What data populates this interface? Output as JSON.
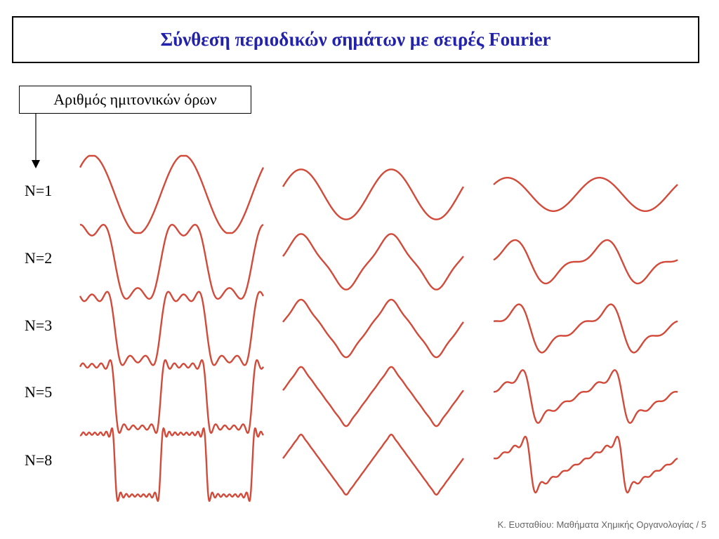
{
  "title": "Σύνθεση περιοδικών σημάτων με σειρές Fourier",
  "label": "Αριθμός ημιτονικών όρων",
  "rows": [
    {
      "label": "N=1",
      "n": 1
    },
    {
      "label": "N=2",
      "n": 2
    },
    {
      "label": "N=3",
      "n": 3
    },
    {
      "label": "N=5",
      "n": 5
    },
    {
      "label": "N=8",
      "n": 8
    }
  ],
  "columns": [
    "square",
    "triangle",
    "sawtooth"
  ],
  "footer": "Κ. Ευσταθίου: Μαθήματα Χημικής Οργανολογίας / 5",
  "colors": {
    "title": "#2222aa",
    "wave": "#d24a3a",
    "footer": "#666666"
  }
}
